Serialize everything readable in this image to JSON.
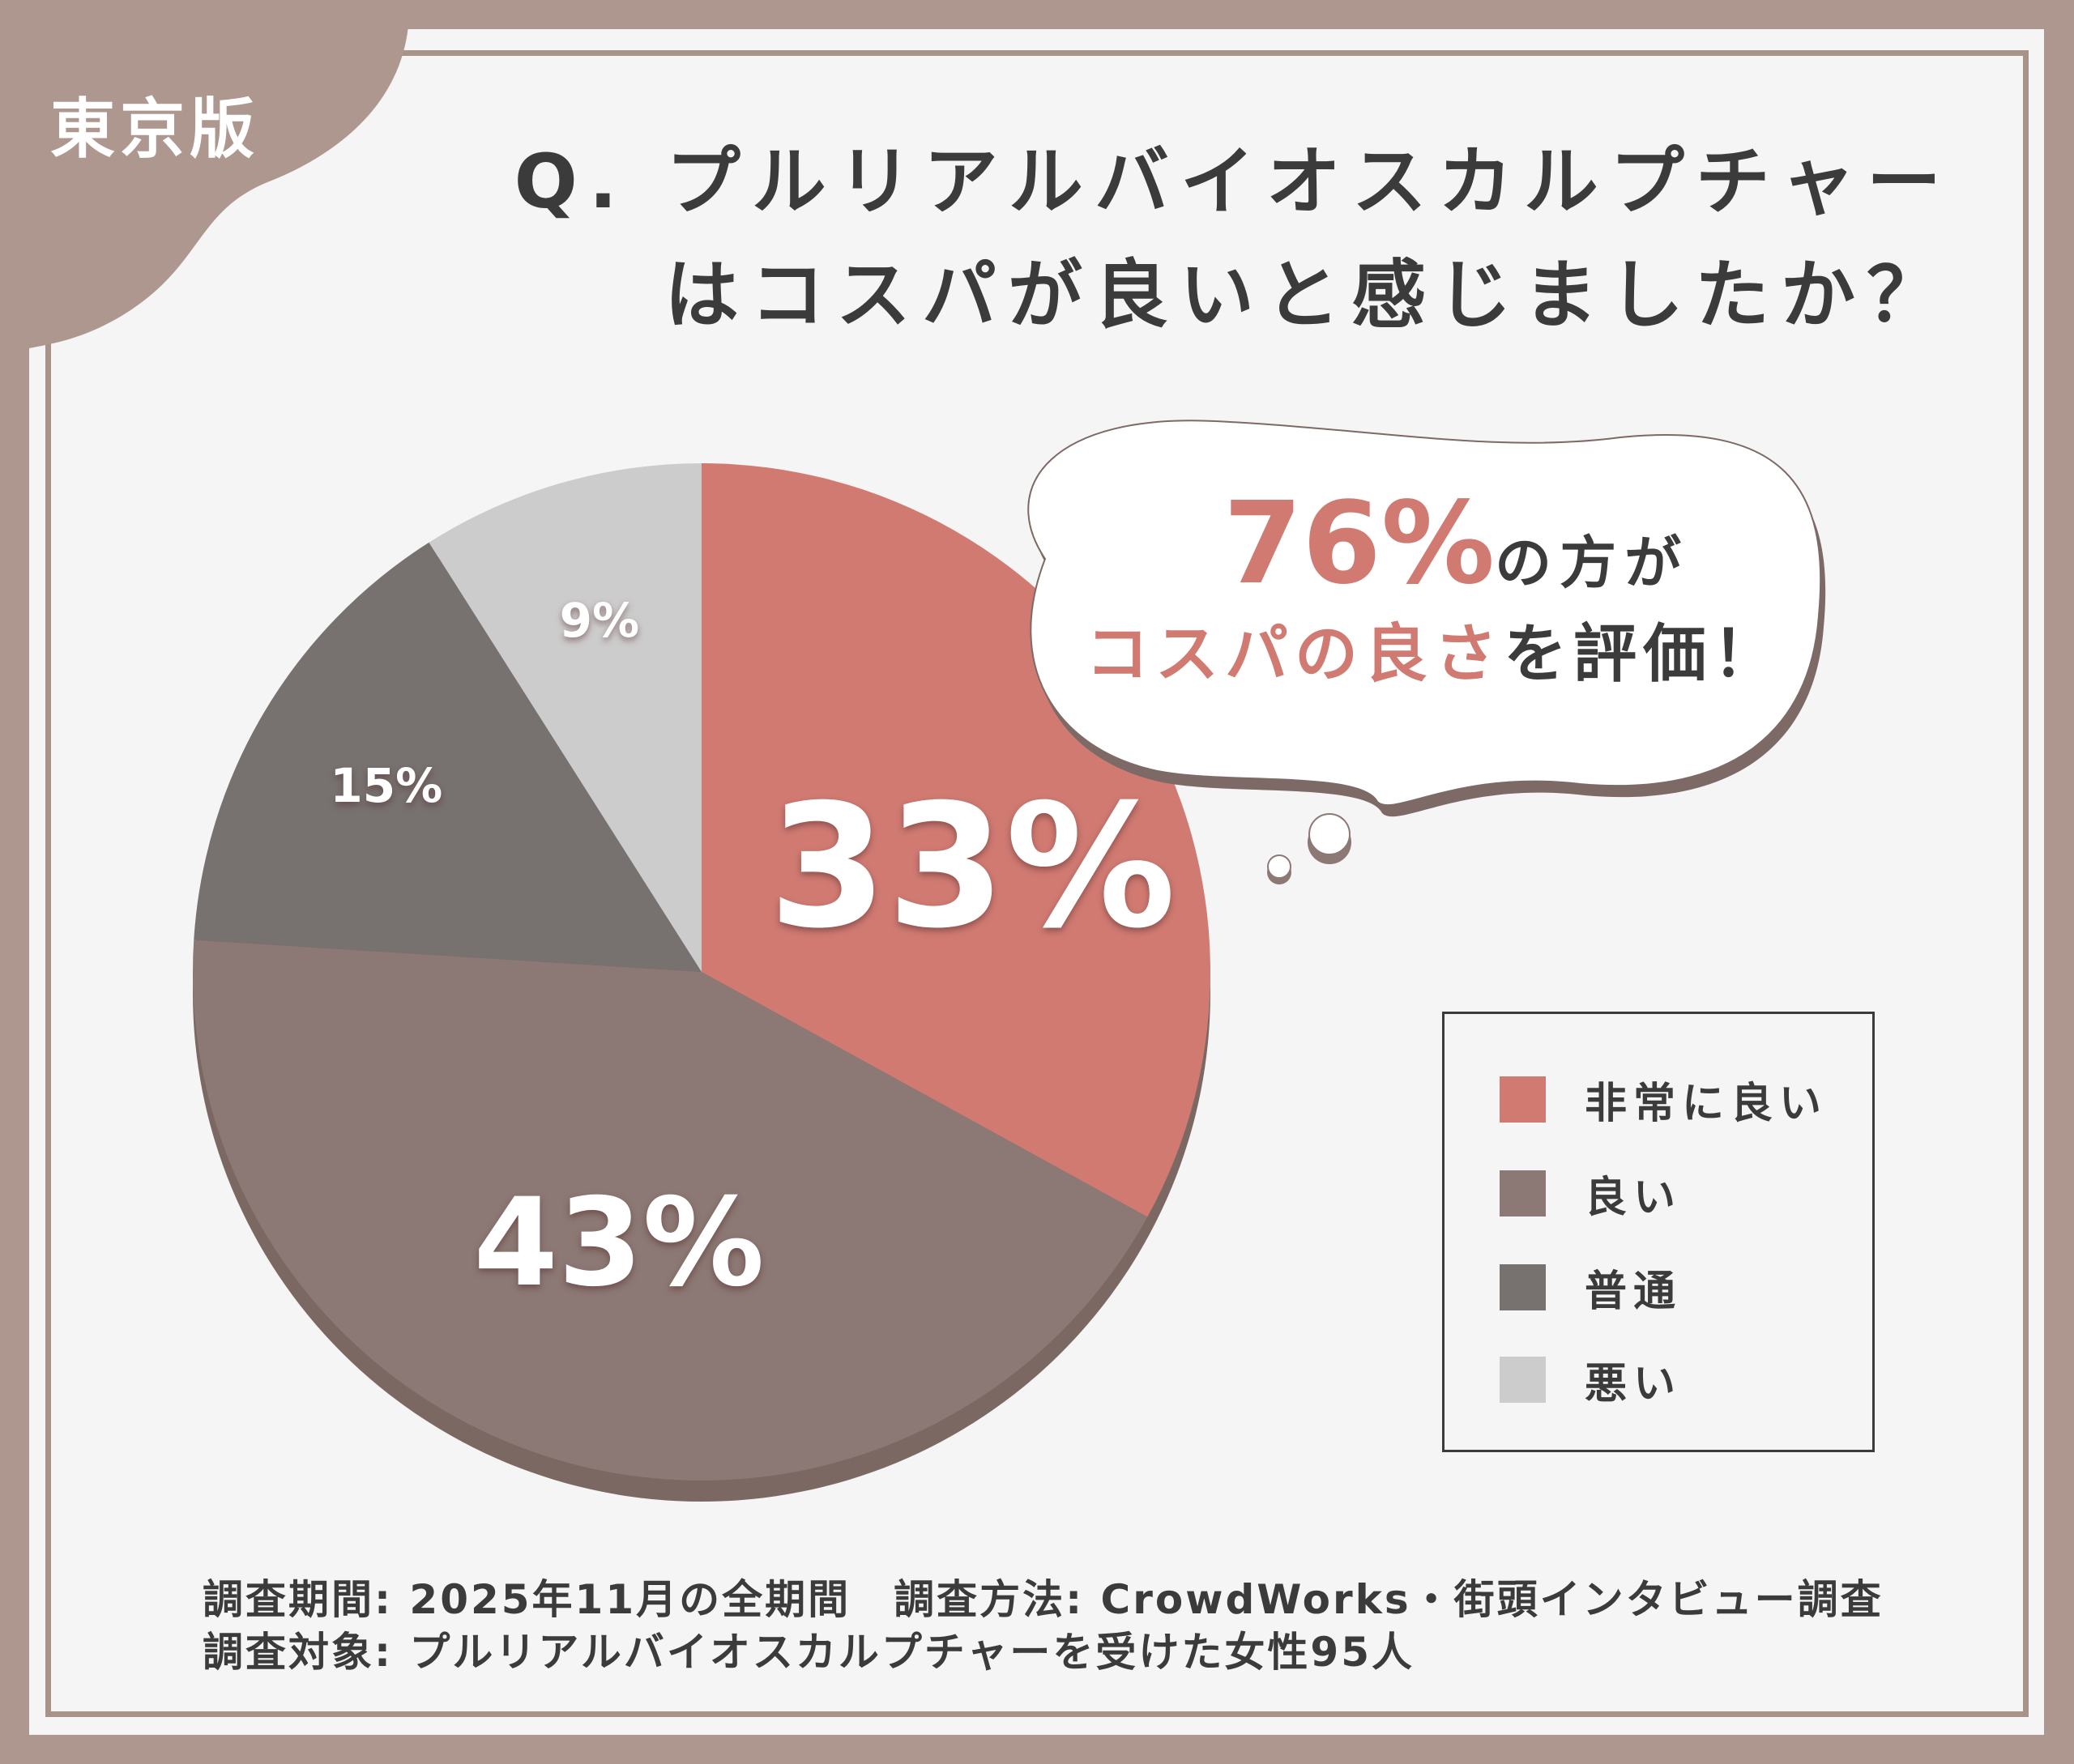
{
  "badge": "東京版",
  "title": {
    "line1": "Q. プルリアルバイオスカルプチャー",
    "line2": "はコスパが良いと感じましたか？"
  },
  "callout": {
    "pct": "76%",
    "line1_rest": "の方が",
    "line2_accent": "コスパの良さ",
    "line2_rest": "を評価！"
  },
  "chart_data": {
    "type": "pie",
    "categories": [
      "非常に良い",
      "良い",
      "普通",
      "悪い"
    ],
    "values": [
      33,
      43,
      15,
      9
    ],
    "labels": [
      "33%",
      "43%",
      "15%",
      "9%"
    ],
    "colors": [
      "#d07a72",
      "#8c7874",
      "#77716f",
      "#cdcccc"
    ],
    "legend_position": "right"
  },
  "footer": {
    "line1": "調査期間: 2025年11月の全期間　調査方法: CrowdWorks・街頭インタビュー調査",
    "line2": "調査対象: プルリアルバイオスカルプチャーを受けた女性95人"
  }
}
